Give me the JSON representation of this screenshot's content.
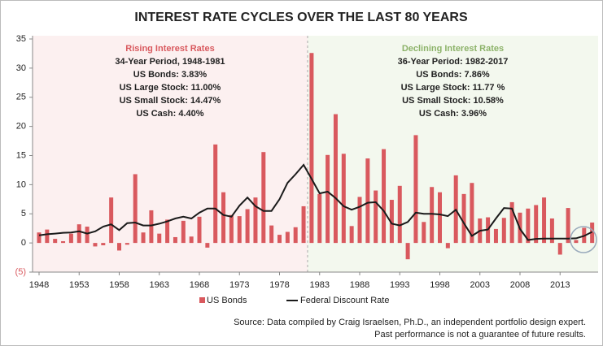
{
  "chart_data": {
    "type": "bar",
    "title": "INTEREST RATE CYCLES OVER THE LAST 80 YEARS",
    "categories": [
      "1948",
      null,
      null,
      null,
      null,
      "1953",
      null,
      null,
      null,
      null,
      "1958",
      null,
      null,
      null,
      null,
      "1963",
      null,
      null,
      null,
      null,
      "1968",
      null,
      null,
      null,
      null,
      "1973",
      null,
      null,
      null,
      null,
      "1978",
      null,
      null,
      null,
      null,
      "1983",
      null,
      null,
      null,
      null,
      "1988",
      null,
      null,
      null,
      null,
      "1993",
      null,
      null,
      null,
      null,
      "1998",
      null,
      null,
      null,
      null,
      "2003",
      null,
      null,
      null,
      null,
      "2008",
      null,
      null,
      null,
      null,
      "2013",
      null,
      null,
      null,
      null
    ],
    "series": [
      {
        "name": "US Bonds",
        "type": "bar",
        "color": "#d9595e",
        "values": [
          1.8,
          2.3,
          0.7,
          0.3,
          1.6,
          3.2,
          2.8,
          -0.6,
          -0.4,
          7.8,
          -1.3,
          -0.3,
          11.8,
          1.8,
          5.6,
          1.6,
          4.0,
          1.0,
          3.8,
          1.1,
          4.5,
          -0.8,
          16.9,
          8.7,
          4.8,
          4.6,
          5.8,
          7.8,
          15.6,
          3.0,
          1.4,
          1.9,
          2.7,
          6.3,
          32.6,
          8.4,
          15.1,
          22.1,
          15.3,
          2.9,
          7.9,
          14.5,
          9.0,
          16.1,
          7.4,
          9.8,
          -2.8,
          18.5,
          3.6,
          9.6,
          8.7,
          -0.9,
          11.6,
          8.4,
          10.3,
          4.2,
          4.4,
          2.4,
          4.3,
          7.0,
          5.2,
          5.9,
          6.5,
          7.8,
          4.2,
          -2.0,
          6.0,
          0.5,
          2.6,
          3.5
        ]
      },
      {
        "name": "Federal Discount Rate",
        "type": "line",
        "color": "#1a1a1a",
        "values": [
          1.3,
          1.5,
          1.6,
          1.75,
          1.8,
          2.0,
          1.6,
          2.0,
          2.8,
          3.2,
          2.2,
          3.4,
          3.5,
          3.0,
          3.0,
          3.3,
          3.7,
          4.2,
          4.5,
          4.2,
          5.2,
          5.9,
          5.9,
          4.8,
          4.5,
          6.4,
          7.8,
          6.3,
          5.5,
          5.5,
          7.5,
          10.3,
          11.8,
          13.4,
          11.0,
          8.5,
          8.8,
          7.7,
          6.3,
          5.7,
          6.2,
          6.9,
          7.0,
          5.5,
          3.3,
          3.0,
          3.6,
          5.2,
          5.0,
          5.0,
          4.9,
          4.6,
          5.7,
          3.4,
          1.2,
          2.1,
          2.3,
          4.2,
          6.0,
          5.9,
          2.4,
          0.5,
          0.7,
          0.75,
          0.75,
          0.75,
          0.75,
          0.8,
          1.2,
          1.9
        ]
      }
    ],
    "ylim": [
      -5,
      35
    ],
    "yticks": [
      {
        "value": -5,
        "label": "(5)"
      },
      0,
      5,
      10,
      15,
      20,
      25,
      30,
      35
    ],
    "grid": false,
    "panels": [
      {
        "heading": "Rising Interest Rates",
        "color": "#d9595e",
        "shade": "#fcf0f0",
        "from": 0,
        "to": 33,
        "lines": [
          "34-Year Period,  1948-1981",
          "US Bonds:  3.83%",
          "US Large Stock:  11.00%",
          "US Small Stock:  14.47%",
          "US Cash:  4.40%"
        ]
      },
      {
        "heading": "Declining Interest Rates",
        "color": "#8db36a",
        "shade": "#f3f8ee",
        "from": 34,
        "to": 69,
        "lines": [
          "36-Year Period:  1982-2017",
          "US Bonds:  7.86%",
          "US Large Stock:  11.77 %",
          "US Small Stock:  10.58%",
          "US Cash:  3.96%"
        ]
      }
    ],
    "source": [
      "Source:  Data compiled by Craig Israelsen, Ph.D., an independent portfolio design expert.",
      "Past performance is not a guarantee of future results."
    ]
  }
}
